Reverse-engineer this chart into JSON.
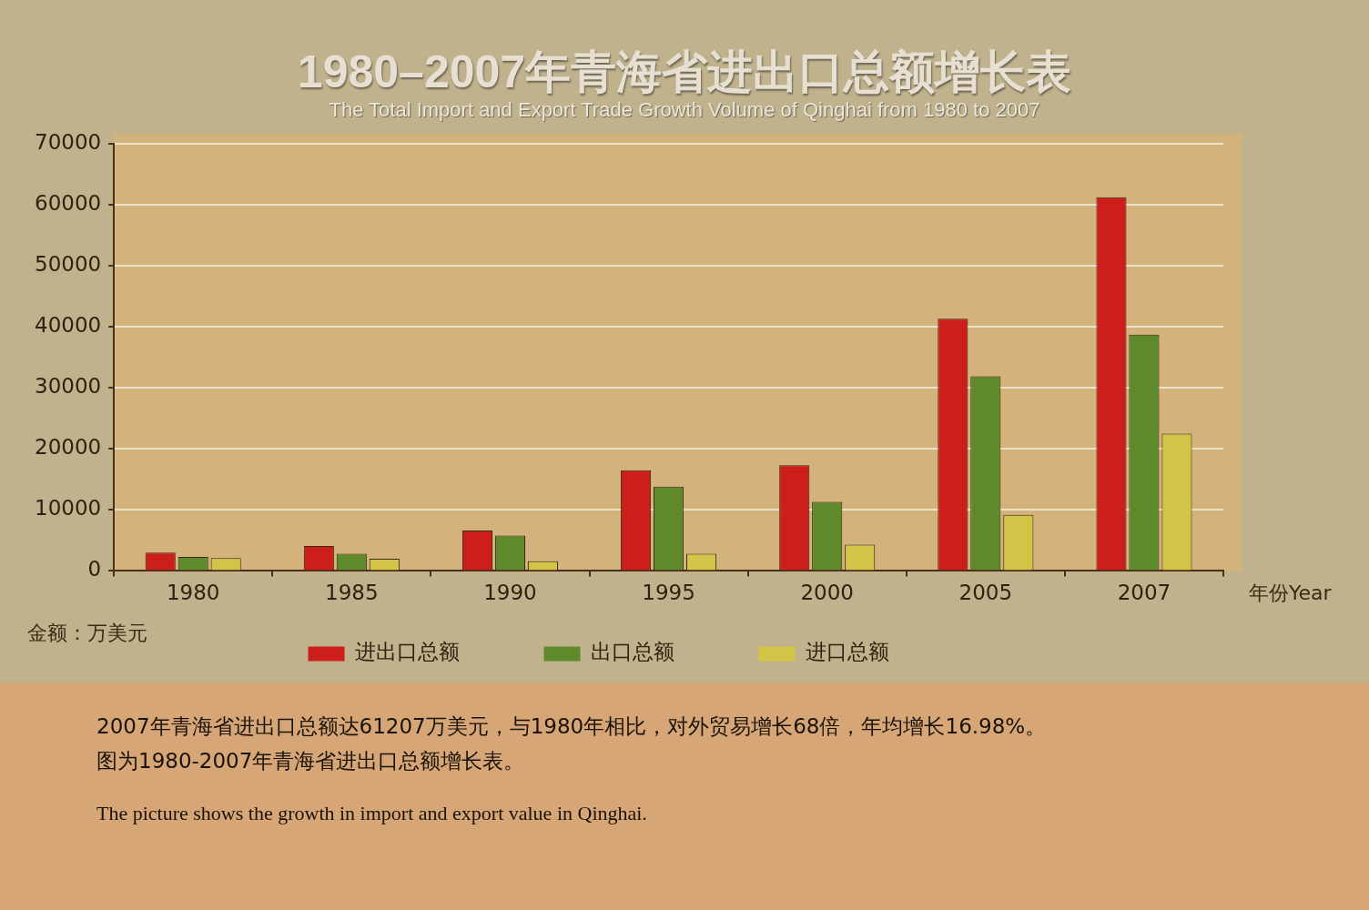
{
  "chart_data": {
    "type": "bar",
    "title": "1980–2007年青海省进出口总额增长表",
    "subtitle": "The Total Import and Export Trade Growth Volume of Qinghai from 1980 to 2007",
    "xlabel": "年份Year",
    "ylabel": "金额：万美元",
    "categories": [
      "1980",
      "1985",
      "1990",
      "1995",
      "2000",
      "2005",
      "2007"
    ],
    "series": [
      {
        "name": "进出口总额",
        "color": "#cc1f1c",
        "values": [
          3000,
          4100,
          6600,
          16500,
          17300,
          41300,
          61200
        ]
      },
      {
        "name": "出口总额",
        "color": "#5e8a2c",
        "values": [
          2300,
          2800,
          5800,
          13800,
          11300,
          31900,
          38700
        ]
      },
      {
        "name": "进口总额",
        "color": "#d2c447",
        "values": [
          2100,
          2000,
          1600,
          2800,
          4300,
          9200,
          22500
        ]
      }
    ],
    "ylim": [
      0,
      70000
    ],
    "yticks": [
      0,
      10000,
      20000,
      30000,
      40000,
      50000,
      60000,
      70000
    ],
    "grid": "y",
    "legend": "bottom",
    "annotations": [
      "2007年青海省进出口总额达61207万美元，与1980年相比，对外贸易增长68倍，年均增长16.98%。",
      "图为1980-2007年青海省进出口总额增长表。",
      "The picture shows the growth in import and export value in Qinghai."
    ]
  }
}
